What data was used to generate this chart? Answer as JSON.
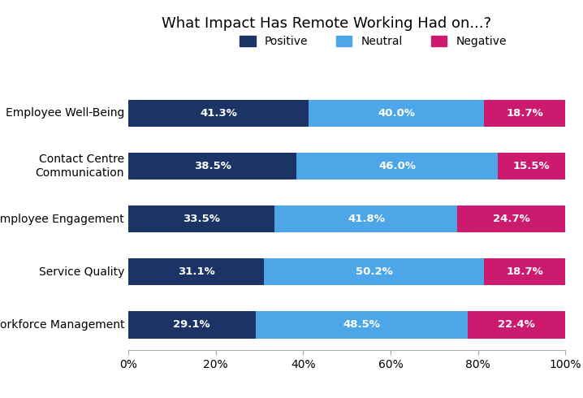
{
  "title": "What Impact Has Remote Working Had on...?",
  "categories": [
    "Employee Well-Being",
    "Contact Centre\nCommunication",
    "Employee Engagement",
    "Service Quality",
    "Workforce Management"
  ],
  "positive": [
    41.3,
    38.5,
    33.5,
    31.1,
    29.1
  ],
  "neutral": [
    40.0,
    46.0,
    41.8,
    50.2,
    48.5
  ],
  "negative": [
    18.7,
    15.5,
    24.7,
    18.7,
    22.4
  ],
  "color_positive": "#1c3366",
  "color_neutral": "#4da6e8",
  "color_negative": "#cc1a6e",
  "legend_labels": [
    "Positive",
    "Neutral",
    "Negative"
  ],
  "bar_height": 0.52,
  "title_fontsize": 13,
  "label_fontsize": 10,
  "tick_fontsize": 10,
  "annotation_fontsize": 9.5,
  "background_color": "#ffffff",
  "xlim": [
    0,
    100
  ]
}
